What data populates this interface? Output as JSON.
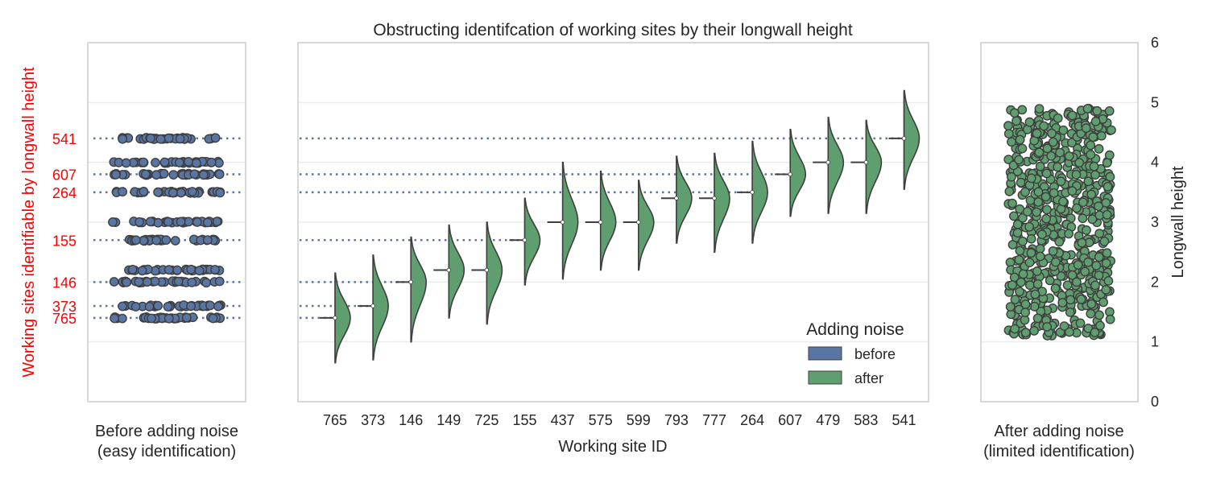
{
  "colors": {
    "before": "#5875a4",
    "after": "#5f9e6e",
    "highlight": "#ff0000",
    "text": "#262626",
    "grid": "#ebebeb",
    "frame": "#cccccc",
    "edge": "#3f3f3f"
  },
  "chart_data": [
    {
      "type": "scatter",
      "panel": "left",
      "xlabel": "Before adding noise\n(easy identification)",
      "ylabel": "Working sites identifiable by longwall height",
      "ylim": [
        0,
        6
      ],
      "grid": true,
      "highlighted_sites": [
        {
          "label": "541",
          "y": 4.4
        },
        {
          "label": "607",
          "y": 3.8
        },
        {
          "label": "264",
          "y": 3.5
        },
        {
          "label": "155",
          "y": 2.7
        },
        {
          "label": "146",
          "y": 2.0
        },
        {
          "label": "373",
          "y": 1.6
        },
        {
          "label": "765",
          "y": 1.4
        }
      ],
      "point_levels": [
        1.4,
        1.6,
        2.0,
        2.2,
        2.7,
        3.0,
        3.5,
        3.8,
        4.0,
        4.4
      ],
      "series": [
        {
          "name": "before"
        }
      ]
    },
    {
      "type": "violin",
      "panel": "center",
      "title": "Obstructing identifcation of working sites by their longwall height",
      "xlabel": "Working site ID",
      "ylim": [
        0,
        6
      ],
      "grid": true,
      "categories": [
        "765",
        "373",
        "146",
        "149",
        "725",
        "155",
        "437",
        "575",
        "599",
        "793",
        "777",
        "264",
        "607",
        "479",
        "583",
        "541"
      ],
      "before_values": [
        1.4,
        1.6,
        2.0,
        2.2,
        2.2,
        2.7,
        3.0,
        3.0,
        3.0,
        3.4,
        3.4,
        3.5,
        3.8,
        4.0,
        4.0,
        4.4
      ],
      "after_min": [
        0.65,
        0.7,
        1.0,
        1.4,
        1.3,
        1.95,
        2.05,
        2.2,
        2.2,
        2.65,
        2.5,
        2.65,
        3.1,
        3.15,
        3.15,
        3.55
      ],
      "after_max": [
        2.15,
        2.45,
        2.75,
        2.95,
        3.0,
        3.4,
        4.0,
        3.85,
        3.7,
        4.1,
        4.15,
        4.35,
        4.55,
        4.75,
        4.7,
        5.2
      ],
      "legend": {
        "title": "Adding noise",
        "position": "lower-right",
        "entries": [
          "before",
          "after"
        ]
      },
      "series": [
        {
          "name": "before"
        },
        {
          "name": "after"
        }
      ]
    },
    {
      "type": "scatter",
      "panel": "right",
      "xlabel": "After adding noise\n(limited identification)",
      "ylabel": "Longwall height",
      "ylim": [
        0,
        6
      ],
      "yticks": [
        "0",
        "1",
        "2",
        "3",
        "4",
        "5",
        "6"
      ],
      "grid": true,
      "point_range": [
        1.1,
        4.9
      ],
      "series": [
        {
          "name": "after"
        }
      ]
    }
  ]
}
